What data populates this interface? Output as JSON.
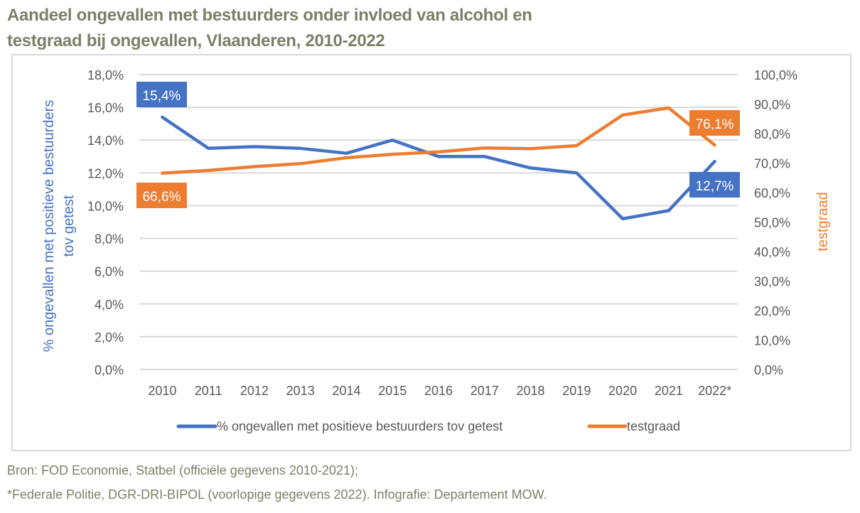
{
  "title_lines": [
    "Aandeel ongevallen met bestuurders onder invloed van alcohol en",
    "testgraad bij ongevallen, Vlaanderen, 2010-2022"
  ],
  "footer": {
    "line1": "Bron: FOD Economie, Statbel (officiële gegevens 2010-2021);",
    "line2": "*Federale Politie, DGR-DRI-BIPOL (voorlopige gegevens 2022). Infografie: Departement MOW."
  },
  "colors": {
    "blue": "#4472c4",
    "orange": "#ed7d31",
    "grid": "#d9d9d9",
    "tick": "#595959",
    "title": "#7b8067"
  },
  "chart_data": {
    "type": "line",
    "title": "Aandeel ongevallen met bestuurders onder invloed van alcohol en testgraad bij ongevallen, Vlaanderen, 2010-2022",
    "categories": [
      "2010",
      "2011",
      "2012",
      "2013",
      "2014",
      "2015",
      "2016",
      "2017",
      "2018",
      "2019",
      "2020",
      "2021",
      "2022*"
    ],
    "xlabel": "",
    "ylabel": "% ongevallen met positieve bestuurders tov getest",
    "ylabel_lines": [
      "% ongevallen met positieve bestuurders",
      "tov getest"
    ],
    "y2label": "testgraad",
    "ylim": [
      0,
      18
    ],
    "y_ticks": [
      0,
      2,
      4,
      6,
      8,
      10,
      12,
      14,
      16,
      18
    ],
    "y_tick_labels": [
      "0,0%",
      "2,0%",
      "4,0%",
      "6,0%",
      "8,0%",
      "10,0%",
      "12,0%",
      "14,0%",
      "16,0%",
      "18,0%"
    ],
    "y2lim": [
      0,
      100
    ],
    "y2_ticks": [
      0,
      10,
      20,
      30,
      40,
      50,
      60,
      70,
      80,
      90,
      100
    ],
    "y2_tick_labels": [
      "0,0%",
      "10,0%",
      "20,0%",
      "30,0%",
      "40,0%",
      "50,0%",
      "60,0%",
      "70,0%",
      "80,0%",
      "90,0%",
      "100,0%"
    ],
    "grid": true,
    "legend_position": "bottom",
    "series": [
      {
        "name": "% ongevallen met positieve bestuurders tov getest",
        "axis": "left",
        "color": "#4472c4",
        "values": [
          15.4,
          13.5,
          13.6,
          13.5,
          13.2,
          14.0,
          13.0,
          13.0,
          12.3,
          12.0,
          9.2,
          9.7,
          12.7
        ],
        "data_labels": [
          {
            "index": 0,
            "text": "15,4%"
          },
          {
            "index": 12,
            "text": "12,7%"
          }
        ]
      },
      {
        "name": "testgraad",
        "axis": "right",
        "color": "#ed7d31",
        "values": [
          66.6,
          67.5,
          68.8,
          69.8,
          71.8,
          73.0,
          73.8,
          75.1,
          74.9,
          75.9,
          86.3,
          88.7,
          76.1
        ],
        "data_labels": [
          {
            "index": 0,
            "text": "66,6%"
          },
          {
            "index": 12,
            "text": "76,1%"
          }
        ]
      }
    ]
  }
}
